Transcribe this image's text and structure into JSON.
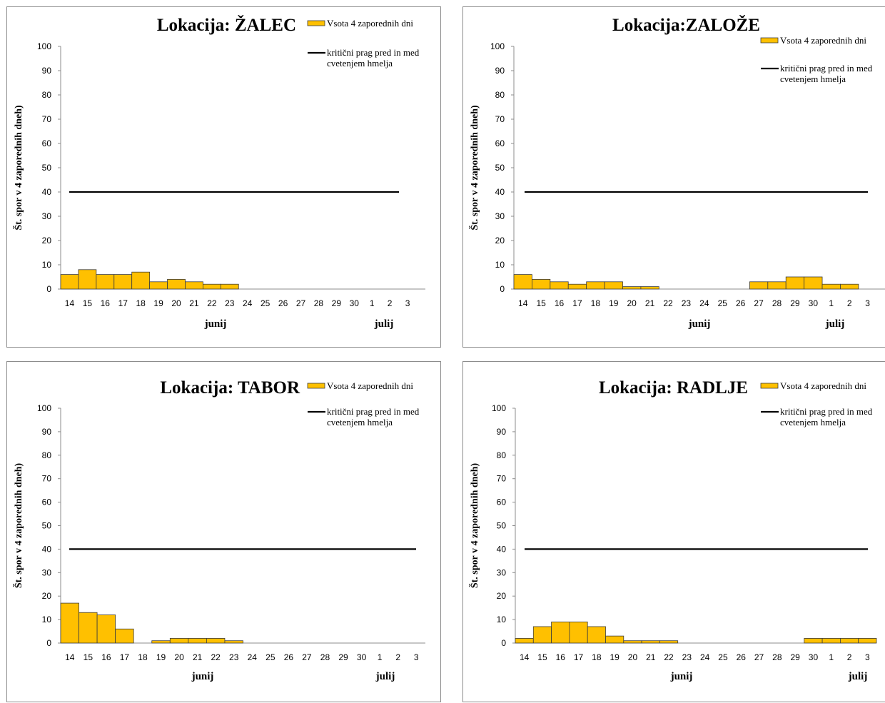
{
  "legend": {
    "bar_label": "Vsota 4 zaporednih dni",
    "line_label_1": "kritični prag pred in med",
    "line_label_2": "cvetenjem  hmelja"
  },
  "colors": {
    "bar_fill": "#ffc000",
    "bar_stroke": "#3c3c3c",
    "line": "#000000",
    "axis": "#8c8c8c"
  },
  "chart_data": [
    {
      "type": "bar",
      "title": "Lokacija: ŽALEC",
      "ylabel": "Št. spor v 4 zaporednih dneh)",
      "ylim": [
        0,
        100
      ],
      "yticks": [
        0,
        10,
        20,
        30,
        40,
        50,
        60,
        70,
        80,
        90,
        100
      ],
      "categories": [
        "14",
        "15",
        "16",
        "17",
        "18",
        "19",
        "20",
        "21",
        "22",
        "23",
        "24",
        "25",
        "26",
        "27",
        "28",
        "29",
        "30",
        "1",
        "2",
        "3"
      ],
      "month_labels": [
        "junij",
        "julij"
      ],
      "series": [
        {
          "name": "Vsota 4 zaporednih dni",
          "values": [
            6,
            8,
            6,
            6,
            7,
            3,
            4,
            3,
            2,
            2,
            0,
            0,
            0,
            0,
            0,
            0,
            0,
            0,
            0,
            0
          ]
        },
        {
          "name": "kritični prag pred in med cvetenjem  hmelja",
          "values": [
            40,
            40,
            40,
            40,
            40,
            40,
            40,
            40,
            40,
            40,
            40,
            40,
            40,
            40,
            40,
            40,
            40,
            40,
            40,
            40
          ]
        }
      ],
      "grid": false,
      "legend_position": "top-right"
    },
    {
      "type": "bar",
      "title": "Lokacija:ZALOŽE",
      "ylabel": "Št. spor v 4 zaporednih dneh)",
      "ylim": [
        0,
        100
      ],
      "yticks": [
        0,
        10,
        20,
        30,
        40,
        50,
        60,
        70,
        80,
        90,
        100
      ],
      "categories": [
        "14",
        "15",
        "16",
        "17",
        "18",
        "19",
        "20",
        "21",
        "22",
        "23",
        "24",
        "25",
        "26",
        "27",
        "28",
        "29",
        "30",
        "1",
        "2",
        "3"
      ],
      "month_labels": [
        "junij",
        "julij"
      ],
      "series": [
        {
          "name": "Vsota 4 zaporednih dni",
          "values": [
            6,
            4,
            3,
            2,
            3,
            3,
            1,
            1,
            0,
            0,
            0,
            0,
            0,
            3,
            3,
            5,
            5,
            2,
            2,
            0
          ]
        },
        {
          "name": "kritični prag pred in med cvetenjem  hmelja",
          "values": [
            40,
            40,
            40,
            40,
            40,
            40,
            40,
            40,
            40,
            40,
            40,
            40,
            40,
            40,
            40,
            40,
            40,
            40,
            40,
            40
          ]
        }
      ],
      "grid": false,
      "legend_position": "top-right"
    },
    {
      "type": "bar",
      "title": "Lokacija: TABOR",
      "ylabel": "Št. spor v 4 zaporednih dneh)",
      "ylim": [
        0,
        100
      ],
      "yticks": [
        0,
        10,
        20,
        30,
        40,
        50,
        60,
        70,
        80,
        90,
        100
      ],
      "categories": [
        "14",
        "15",
        "16",
        "17",
        "18",
        "19",
        "20",
        "21",
        "22",
        "23",
        "24",
        "25",
        "26",
        "27",
        "28",
        "29",
        "30",
        "1",
        "2",
        "3"
      ],
      "month_labels": [
        "junij",
        "julij"
      ],
      "series": [
        {
          "name": "Vsota 4 zaporednih dni",
          "values": [
            17,
            13,
            12,
            6,
            0,
            1,
            2,
            2,
            2,
            1,
            0,
            0,
            0,
            0,
            0,
            0,
            0,
            0,
            0,
            0
          ]
        },
        {
          "name": "kritični prag pred in med cvetenjem  hmelja",
          "values": [
            40,
            40,
            40,
            40,
            40,
            40,
            40,
            40,
            40,
            40,
            40,
            40,
            40,
            40,
            40,
            40,
            40,
            40,
            40,
            40
          ]
        }
      ],
      "grid": false,
      "legend_position": "top-right"
    },
    {
      "type": "bar",
      "title": "Lokacija: RADLJE",
      "ylabel": "Št. spor v 4 zaporednih dneh)",
      "ylim": [
        0,
        100
      ],
      "yticks": [
        0,
        10,
        20,
        30,
        40,
        50,
        60,
        70,
        80,
        90,
        100
      ],
      "categories": [
        "14",
        "15",
        "16",
        "17",
        "18",
        "19",
        "20",
        "21",
        "22",
        "23",
        "24",
        "25",
        "26",
        "27",
        "28",
        "29",
        "30",
        "1",
        "2",
        "3"
      ],
      "month_labels": [
        "junij",
        "julij"
      ],
      "series": [
        {
          "name": "Vsota 4 zaporednih dni",
          "values": [
            2,
            7,
            9,
            9,
            7,
            3,
            1,
            1,
            1,
            0,
            0,
            0,
            0,
            0,
            0,
            0,
            2,
            2,
            2,
            2
          ]
        },
        {
          "name": "kritični prag pred in med cvetenjem  hmelja",
          "values": [
            40,
            40,
            40,
            40,
            40,
            40,
            40,
            40,
            40,
            40,
            40,
            40,
            40,
            40,
            40,
            40,
            40,
            40,
            40,
            40
          ]
        }
      ],
      "grid": false,
      "legend_position": "top-right"
    }
  ]
}
